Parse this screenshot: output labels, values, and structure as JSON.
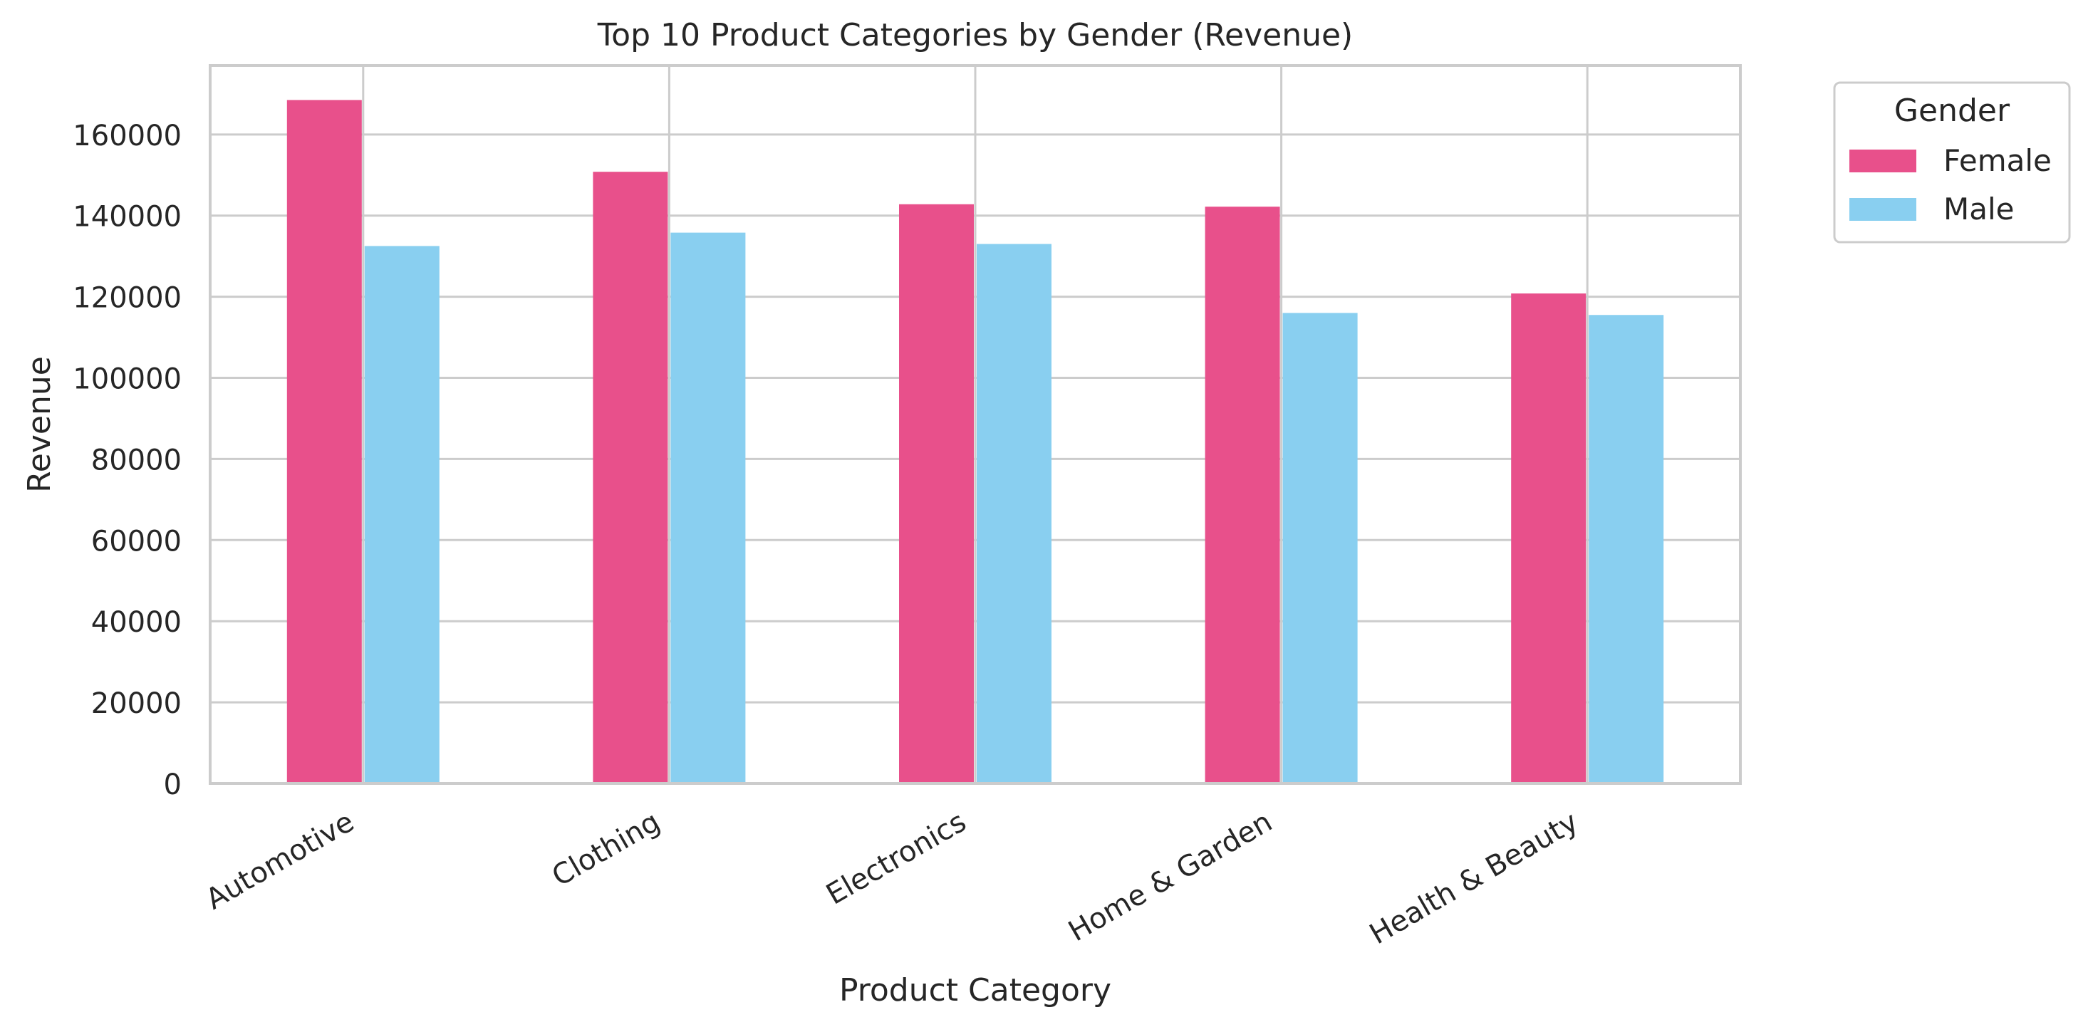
{
  "chart_data": {
    "type": "bar",
    "title": "Top 10 Product Categories by Gender (Revenue)",
    "xlabel": "Product Category",
    "ylabel": "Revenue",
    "categories": [
      "Automotive",
      "Clothing",
      "Electronics",
      "Home & Garden",
      "Health & Beauty"
    ],
    "series": [
      {
        "name": "Female",
        "color": "#e8508b",
        "values": [
          168500,
          150800,
          142800,
          142200,
          120800
        ]
      },
      {
        "name": "Male",
        "color": "#89cff0",
        "values": [
          132500,
          135800,
          133000,
          116000,
          115500
        ]
      }
    ],
    "ylim": [
      0,
      177000
    ],
    "yticks": [
      0,
      20000,
      40000,
      60000,
      80000,
      100000,
      120000,
      140000,
      160000
    ],
    "ytick_labels": [
      "0",
      "20000",
      "40000",
      "60000",
      "80000",
      "100000",
      "120000",
      "140000",
      "160000"
    ],
    "grid": true,
    "legend": {
      "title": "Gender",
      "placement": "outside-top-right"
    }
  }
}
